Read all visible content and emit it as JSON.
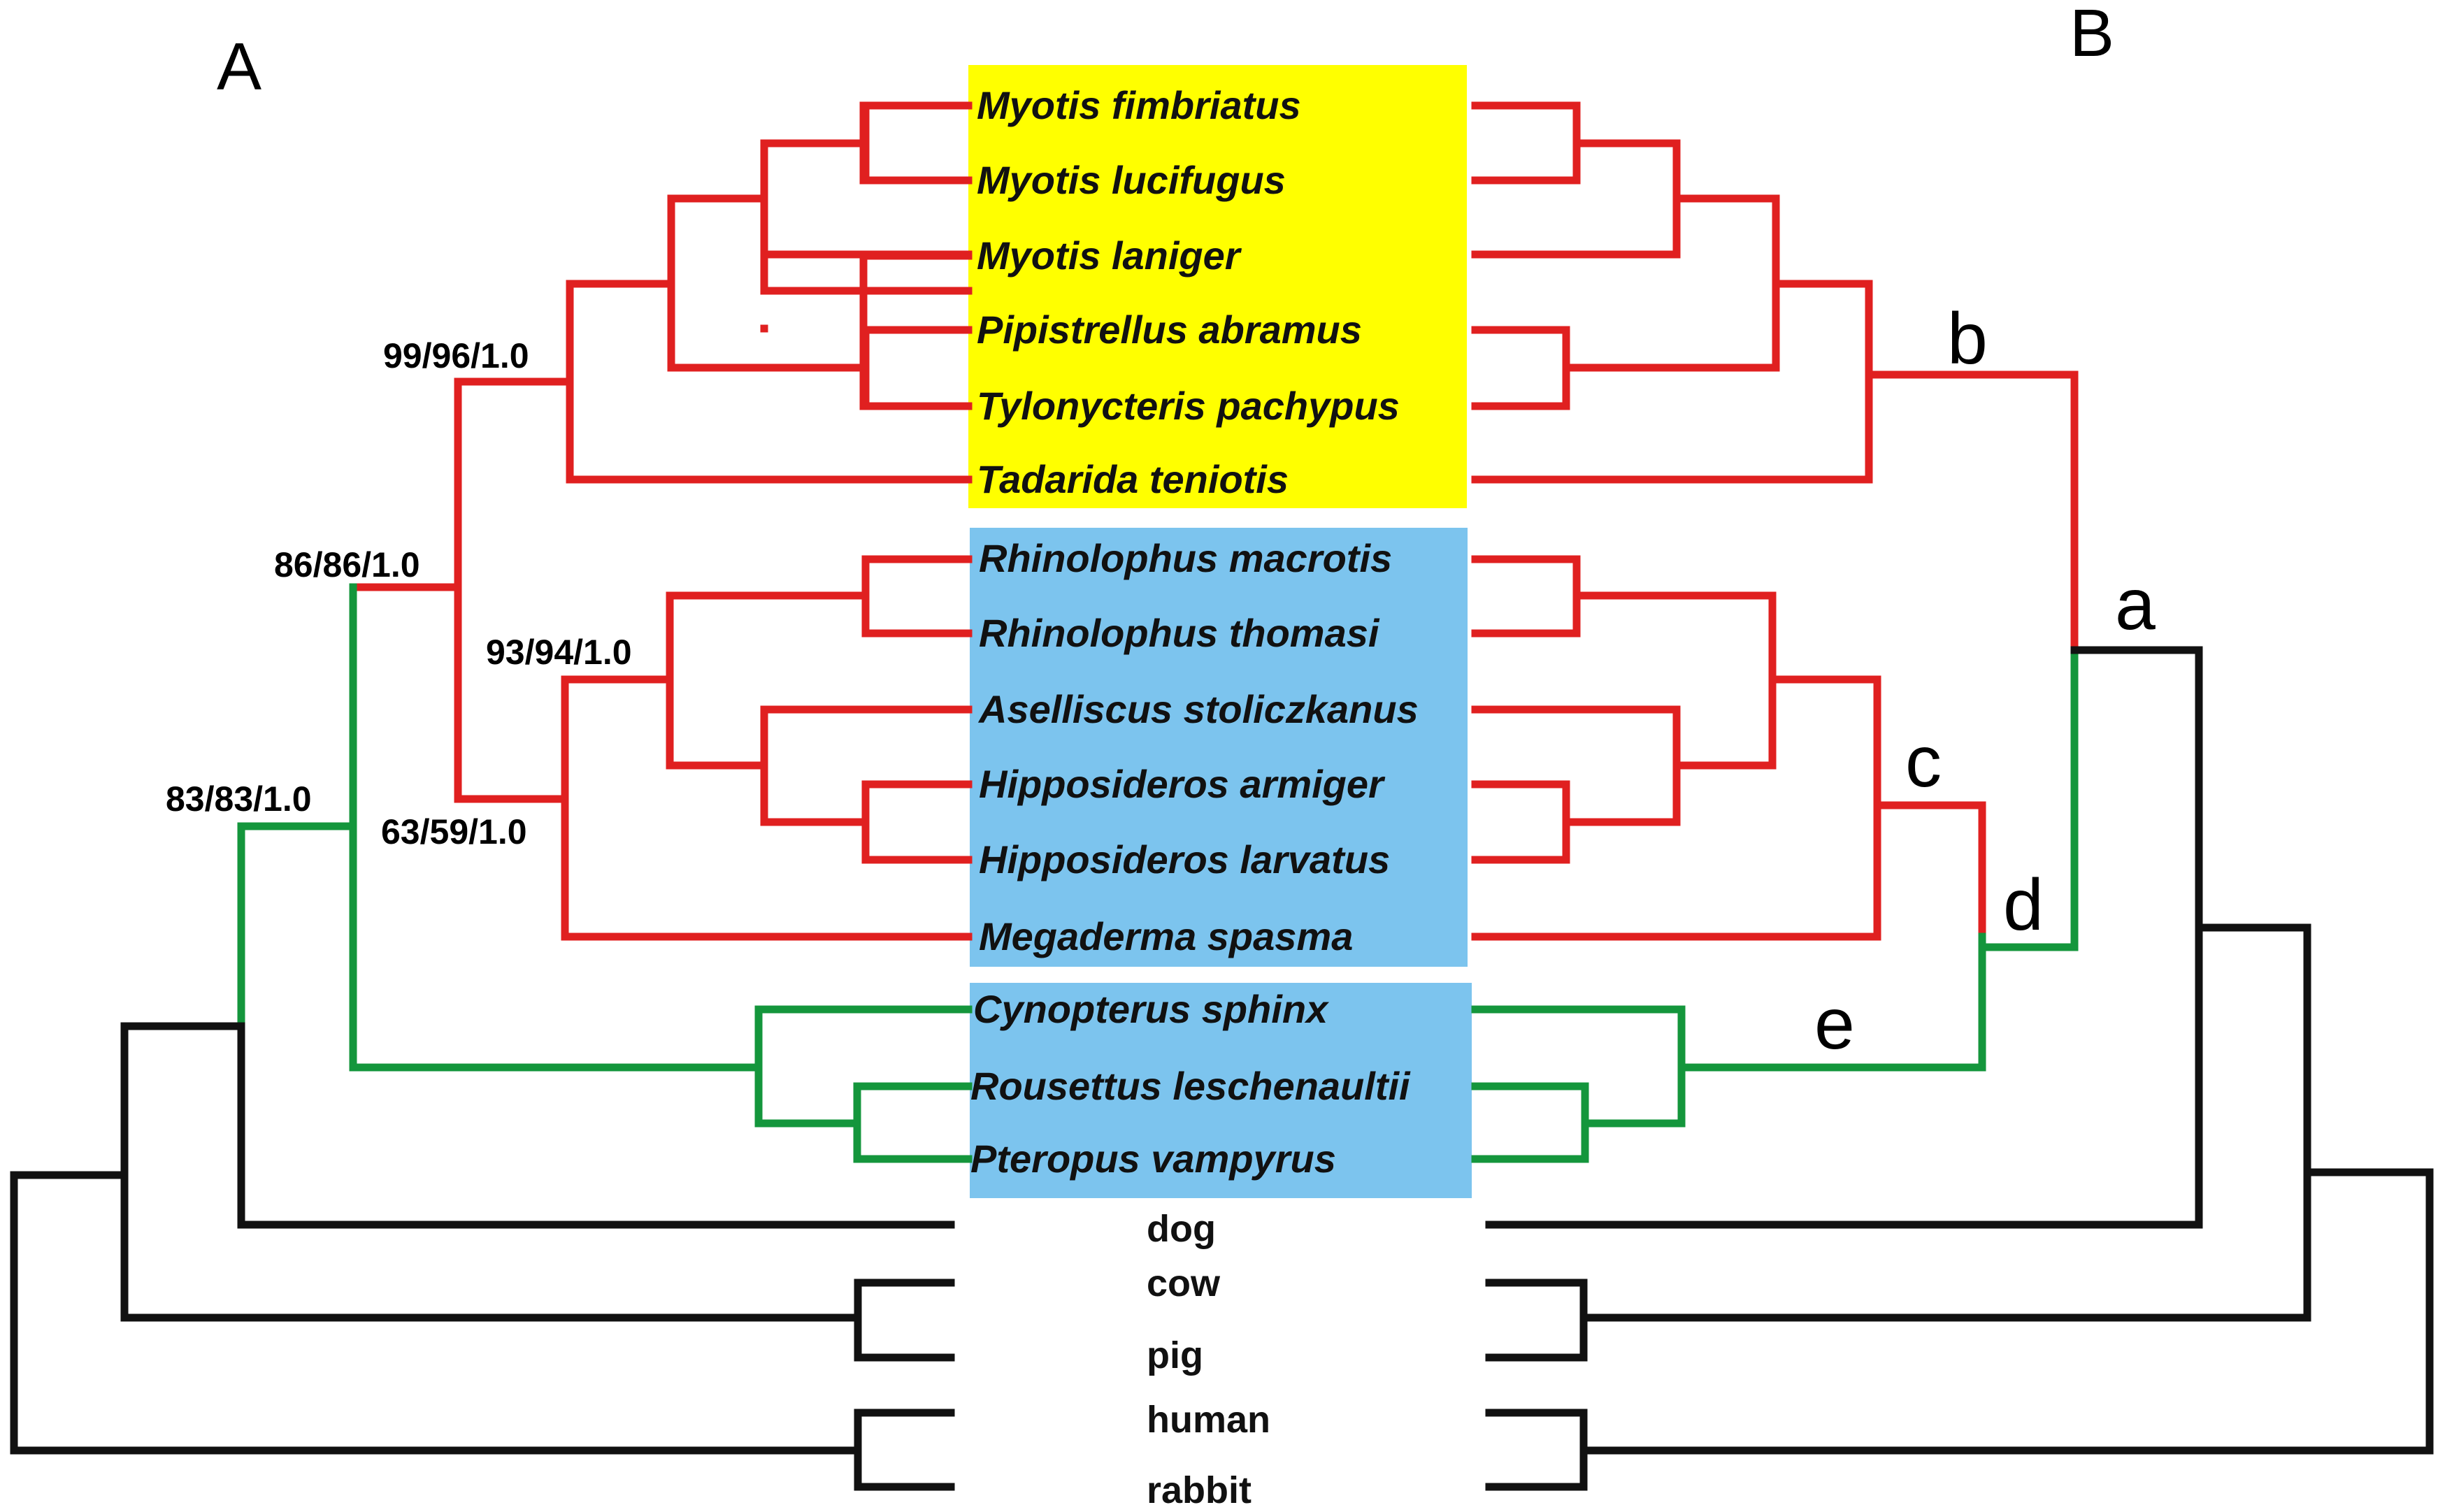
{
  "panels": [
    "A",
    "B"
  ],
  "colors": {
    "insectivorous_box": "#ffff00",
    "other_box": "#7cc4ee",
    "red_lineage": "#e02020",
    "green_lineage": "#14963c",
    "black_lineage": "#111111"
  },
  "box_taxa": [
    "Myotis fimbriatus",
    "Myotis lucifugus",
    "Myotis laniger",
    "Pipistrellus abramus",
    "Tylonycteris pachypus",
    "Tadarida teniotis",
    "Rhinolophus macrotis",
    "Rhinolophus thomasi",
    "Aselliscus stoliczkanus",
    "Hipposideros armiger",
    "Hipposideros larvatus",
    "Megaderma spasma",
    "Cynopterus sphinx",
    "Rousettus leschenaultii",
    "Pteropus vampyrus"
  ],
  "outgroups": [
    "dog",
    "cow",
    "pig",
    "human",
    "rabbit"
  ],
  "support_values": {
    "vesper": "99/96/1.0",
    "microbats": "86/86/1.0",
    "rhinolophoids": "93/94/1.0",
    "rhino_megaderma": "63/59/1.0",
    "bats": "83/83/1.0"
  },
  "branch_labels": {
    "a": "a",
    "b": "b",
    "c": "c",
    "d": "d",
    "e": "e"
  }
}
